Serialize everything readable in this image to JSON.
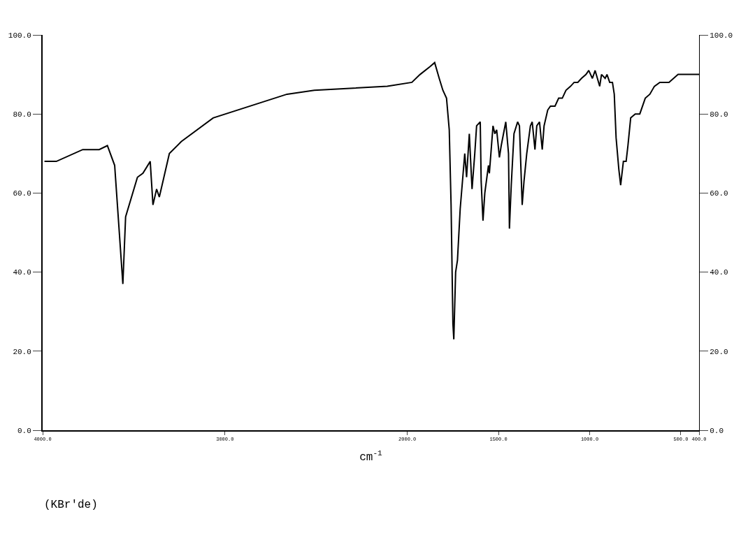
{
  "chart_data": {
    "type": "line",
    "xlabel": "cm$^{-1}$",
    "annotations": [
      "(KBr'de)"
    ],
    "x": [
      3990,
      3925,
      3780,
      3690,
      3645,
      3605,
      3560,
      3545,
      3480,
      3450,
      3410,
      3395,
      3375,
      3360,
      3305,
      3240,
      3065,
      2660,
      2510,
      2110,
      1975,
      1930,
      1875,
      1850,
      1825,
      1805,
      1785,
      1770,
      1760,
      1750,
      1745,
      1735,
      1725,
      1710,
      1685,
      1675,
      1660,
      1645,
      1630,
      1620,
      1600,
      1595,
      1585,
      1575,
      1555,
      1550,
      1530,
      1520,
      1510,
      1495,
      1485,
      1460,
      1445,
      1440,
      1430,
      1415,
      1395,
      1385,
      1370,
      1360,
      1345,
      1325,
      1315,
      1300,
      1290,
      1275,
      1260,
      1250,
      1230,
      1215,
      1190,
      1170,
      1150,
      1130,
      1105,
      1085,
      1065,
      1045,
      1020,
      1005,
      985,
      970,
      945,
      935,
      915,
      905,
      890,
      875,
      865,
      855,
      840,
      830,
      815,
      800,
      790,
      775,
      750,
      725,
      695,
      670,
      645,
      615,
      590,
      565,
      540,
      515,
      460,
      400
    ],
    "series": [
      {
        "color": "#000000",
        "values": [
          68,
          68,
          71,
          71,
          72,
          67,
          37,
          54,
          64,
          65,
          68,
          57,
          61,
          59,
          70,
          73,
          79,
          85,
          86,
          87,
          88,
          90,
          92,
          93,
          89,
          86,
          84,
          76,
          57,
          27,
          23,
          40,
          43,
          56,
          70,
          64,
          75,
          61,
          70,
          77,
          78,
          63,
          53,
          60,
          67,
          65,
          77,
          75,
          76,
          69,
          72,
          78,
          70,
          51,
          62,
          75,
          78,
          77,
          57,
          63,
          70,
          77,
          78,
          71,
          77,
          78,
          71,
          77,
          81,
          82,
          82,
          84,
          84,
          86,
          87,
          88,
          88,
          89,
          90,
          91,
          89,
          91,
          87,
          90,
          89,
          90,
          88,
          88,
          85,
          74,
          66,
          62,
          68,
          68,
          72,
          79,
          80,
          80,
          84,
          85,
          87,
          88,
          88,
          88,
          89,
          90,
          90,
          90
        ]
      }
    ],
    "xlim": [
      4000,
      400
    ],
    "xticks": [
      {
        "value": 4000,
        "label": "4000.0"
      },
      {
        "value": 3000,
        "label": "3000.0"
      },
      {
        "value": 2000,
        "label": "2000.0"
      },
      {
        "value": 1500,
        "label": "1500.0"
      },
      {
        "value": 1000,
        "label": "1000.0"
      },
      {
        "value": 500,
        "label": "500.0"
      },
      {
        "value": 400,
        "label": "400.0"
      }
    ],
    "ylim": [
      0,
      100
    ],
    "yticks": [
      {
        "value": 0,
        "label": "0.0"
      },
      {
        "value": 20,
        "label": "20.0"
      },
      {
        "value": 40,
        "label": "40.0"
      },
      {
        "value": 60,
        "label": "60.0"
      },
      {
        "value": 80,
        "label": "80.0"
      },
      {
        "value": 100,
        "label": "100.0"
      }
    ],
    "y2lim": [
      0,
      100
    ],
    "y2ticks": [
      {
        "value": 0,
        "label": "0.0"
      },
      {
        "value": 20,
        "label": "20.0"
      },
      {
        "value": 40,
        "label": "40.0"
      },
      {
        "value": 60,
        "label": "60.0"
      },
      {
        "value": 80,
        "label": "80.0"
      },
      {
        "value": 100,
        "label": "100.0"
      }
    ],
    "marker": "none",
    "line_style": "solid"
  }
}
